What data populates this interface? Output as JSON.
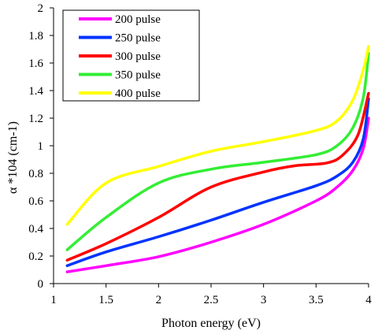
{
  "chart_data": {
    "type": "line",
    "xlabel": "Photon energy (eV)",
    "ylabel": "α *104 (cm-1)",
    "xlim": [
      1,
      4
    ],
    "ylim": [
      0,
      2
    ],
    "xticks": [
      "1",
      "1.5",
      "2",
      "2.5",
      "3",
      "3.5",
      "4"
    ],
    "yticks": [
      "0",
      "0.2",
      "0.4",
      "0.6",
      "0.8",
      "1",
      "1.2",
      "1.4",
      "1.6",
      "1.8",
      "2"
    ],
    "legend_position": "top-left",
    "grid": false,
    "series": [
      {
        "name": "200 pulse",
        "color": "#ff00ff",
        "points": [
          [
            1.13,
            0.085
          ],
          [
            1.5,
            0.13
          ],
          [
            2.0,
            0.195
          ],
          [
            2.5,
            0.3
          ],
          [
            3.0,
            0.43
          ],
          [
            3.5,
            0.6
          ],
          [
            3.7,
            0.7
          ],
          [
            3.85,
            0.82
          ],
          [
            3.95,
            0.98
          ],
          [
            4.0,
            1.2
          ]
        ]
      },
      {
        "name": "250 pulse",
        "color": "#0033ff",
        "points": [
          [
            1.13,
            0.13
          ],
          [
            1.5,
            0.23
          ],
          [
            2.0,
            0.34
          ],
          [
            2.5,
            0.46
          ],
          [
            3.0,
            0.59
          ],
          [
            3.5,
            0.71
          ],
          [
            3.7,
            0.78
          ],
          [
            3.85,
            0.88
          ],
          [
            3.95,
            1.05
          ],
          [
            4.0,
            1.34
          ]
        ]
      },
      {
        "name": "300 pulse",
        "color": "#ff0000",
        "points": [
          [
            1.13,
            0.17
          ],
          [
            1.5,
            0.29
          ],
          [
            2.0,
            0.48
          ],
          [
            2.5,
            0.7
          ],
          [
            3.0,
            0.81
          ],
          [
            3.3,
            0.855
          ],
          [
            3.6,
            0.875
          ],
          [
            3.75,
            0.93
          ],
          [
            3.9,
            1.08
          ],
          [
            4.0,
            1.38
          ]
        ]
      },
      {
        "name": "350 pulse",
        "color": "#33ee33",
        "points": [
          [
            1.13,
            0.245
          ],
          [
            1.5,
            0.48
          ],
          [
            2.0,
            0.73
          ],
          [
            2.5,
            0.83
          ],
          [
            3.0,
            0.88
          ],
          [
            3.5,
            0.935
          ],
          [
            3.7,
            1.0
          ],
          [
            3.85,
            1.13
          ],
          [
            3.95,
            1.35
          ],
          [
            4.0,
            1.67
          ]
        ]
      },
      {
        "name": "400 pulse",
        "color": "#ffff00",
        "points": [
          [
            1.13,
            0.43
          ],
          [
            1.5,
            0.73
          ],
          [
            2.0,
            0.85
          ],
          [
            2.5,
            0.96
          ],
          [
            3.0,
            1.03
          ],
          [
            3.5,
            1.11
          ],
          [
            3.7,
            1.18
          ],
          [
            3.85,
            1.33
          ],
          [
            3.95,
            1.55
          ],
          [
            4.0,
            1.72
          ]
        ]
      }
    ]
  }
}
